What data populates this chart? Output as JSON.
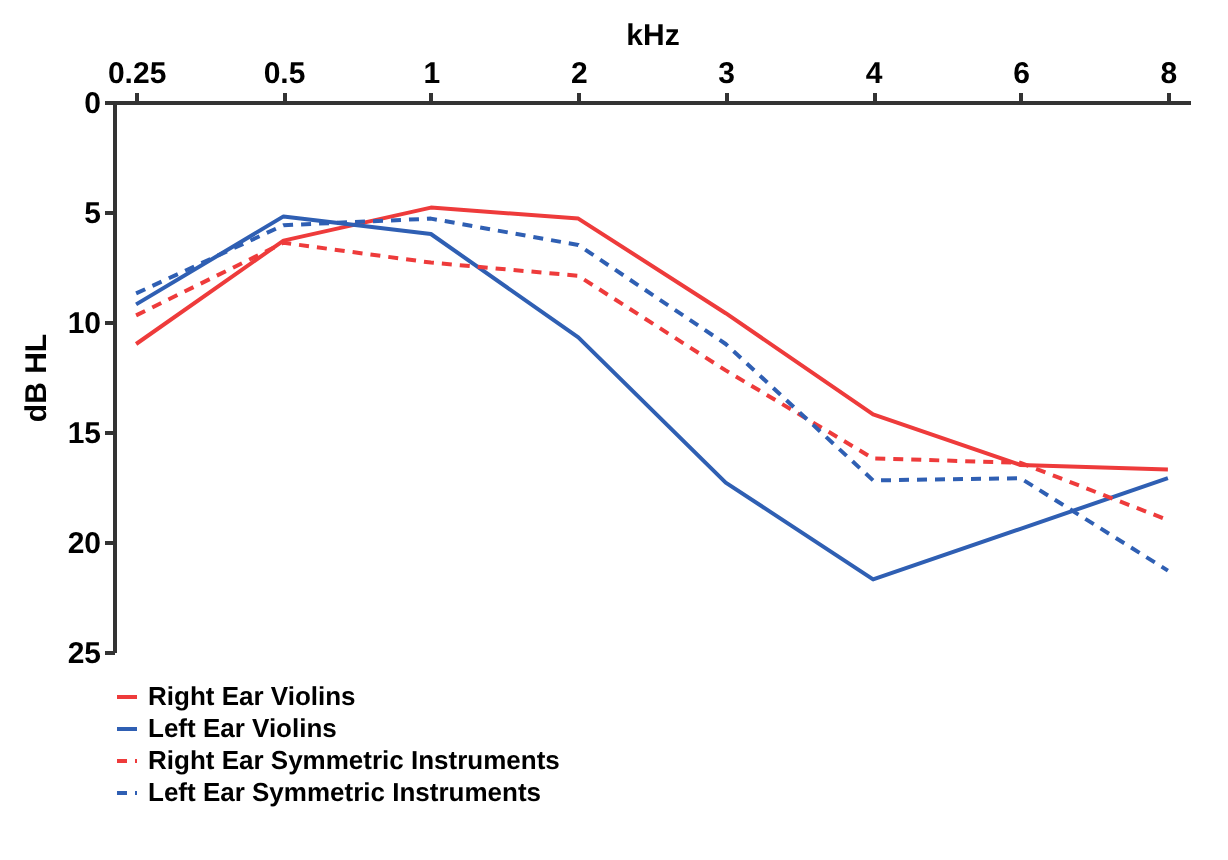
{
  "chart_data": {
    "type": "line",
    "xlabel": "kHz",
    "ylabel": "dB HL",
    "categories": [
      "0.25",
      "0.5",
      "1",
      "2",
      "3",
      "4",
      "6",
      "8"
    ],
    "ylim": [
      25,
      0
    ],
    "yticks": [
      0,
      5,
      10,
      15,
      20,
      25
    ],
    "grid": false,
    "legend": "bottom",
    "marker": "none",
    "series": [
      {
        "name": "Right Ear Violins",
        "color": "#ee3b3b",
        "line_style": "solid",
        "values": [
          11,
          6.3,
          4.8,
          5.3,
          9.6,
          14.2,
          16.5,
          16.7
        ]
      },
      {
        "name": "Left Ear Violins",
        "color": "#2f5fb3",
        "line_style": "solid",
        "values": [
          9.2,
          5.2,
          6.0,
          10.7,
          17.3,
          21.7,
          19.4,
          17.1
        ]
      },
      {
        "name": "Right Ear Symmetric Instruments",
        "color": "#ee3b3b",
        "line_style": "dashed",
        "values": [
          9.7,
          6.4,
          7.3,
          7.9,
          12.2,
          16.2,
          16.4,
          19.0
        ]
      },
      {
        "name": "Left Ear Symmetric Instruments",
        "color": "#2f5fb3",
        "line_style": "dashed",
        "values": [
          8.7,
          5.6,
          5.3,
          6.5,
          11,
          17.2,
          17.1,
          21.3
        ]
      }
    ]
  }
}
